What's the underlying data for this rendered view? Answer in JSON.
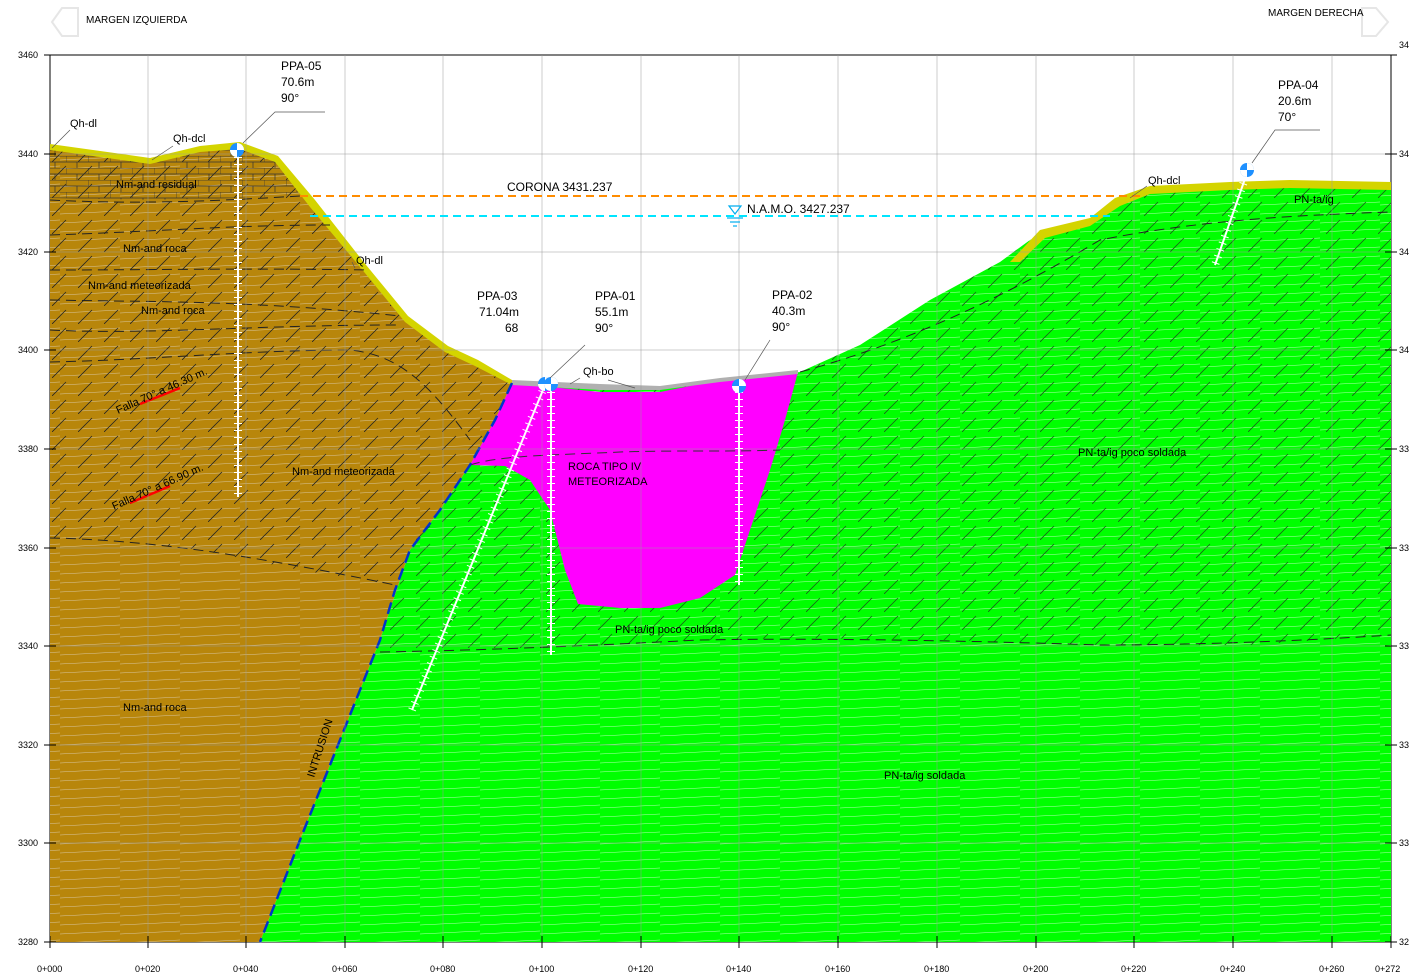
{
  "header": {
    "left_label": "MARGEN IZQUIERDA",
    "right_label": "MARGEN DERECHA"
  },
  "axes": {
    "elevation_ticks": [
      "3460",
      "3440",
      "3420",
      "3400",
      "3380",
      "3360",
      "3340",
      "3320",
      "3300",
      "3280"
    ],
    "right_elevation_ticks": [
      "34",
      "34",
      "34",
      "34",
      "33",
      "33",
      "33",
      "33",
      "33",
      "32"
    ],
    "chainage_ticks": [
      "0+000",
      "0+020",
      "0+040",
      "0+060",
      "0+080",
      "0+100",
      "0+120",
      "0+140",
      "0+160",
      "0+180",
      "0+200",
      "0+220",
      "0+240",
      "0+260",
      "0+272"
    ]
  },
  "levels": {
    "corona": "CORONA 3431.237",
    "namo": "N.A.M.O. 3427.237"
  },
  "boreholes": [
    {
      "id": "PPA-05",
      "length": "70.6m",
      "angle": "90°"
    },
    {
      "id": "PPA-03",
      "length": "71.04m",
      "angle": "68"
    },
    {
      "id": "PPA-01",
      "length": "55.1m",
      "angle": "90°"
    },
    {
      "id": "PPA-02",
      "length": "40.3m",
      "angle": "90°"
    },
    {
      "id": "PPA-04",
      "length": "20.6m",
      "angle": "70°"
    }
  ],
  "units": {
    "qh_dl_top": "Qh-dl",
    "qh_dcl_left": "Qh-dcl",
    "qh_dl_slope": "Qh-dl",
    "qh_bo": "Qh-bo",
    "qh_dcl_right": "Qh-dcl",
    "nm_residual": "Nm-and residual",
    "nm_roca_1": "Nm-and  roca",
    "nm_meteorizada_1": "Nm-and  meteorizada",
    "nm_roca_2": "Nm-and  roca",
    "nm_meteorizada_2": "Nm-and  meteorizada",
    "nm_roca_3": "Nm-and  roca",
    "roca_iv_1": "ROCA TIPO IV",
    "roca_iv_2": "METEORIZADA",
    "pn_ta_ig": "PN-ta/ig",
    "pn_poco_1": "PN-ta/ig poco soldada",
    "pn_poco_2": "PN-ta/ig poco soldada",
    "pn_soldada": "PN-ta/ig soldada",
    "intrusion": "INTRUSION",
    "falla_1": "Falla 70° a 46.30 m.",
    "falla_2": "Falla 70° a 66.90 m."
  },
  "colors": {
    "nm_brown": "#B8860B",
    "pn_green": "#00FF00",
    "roca_magenta": "#FF00FF",
    "colluvium_yellow": "#D4D400",
    "corona_orange": "#FF8C00",
    "namo_cyan": "#00E5FF",
    "intrusion_blue": "#0033CC",
    "fault_red": "#FF0000",
    "borehole_blue": "#1E90FF"
  }
}
